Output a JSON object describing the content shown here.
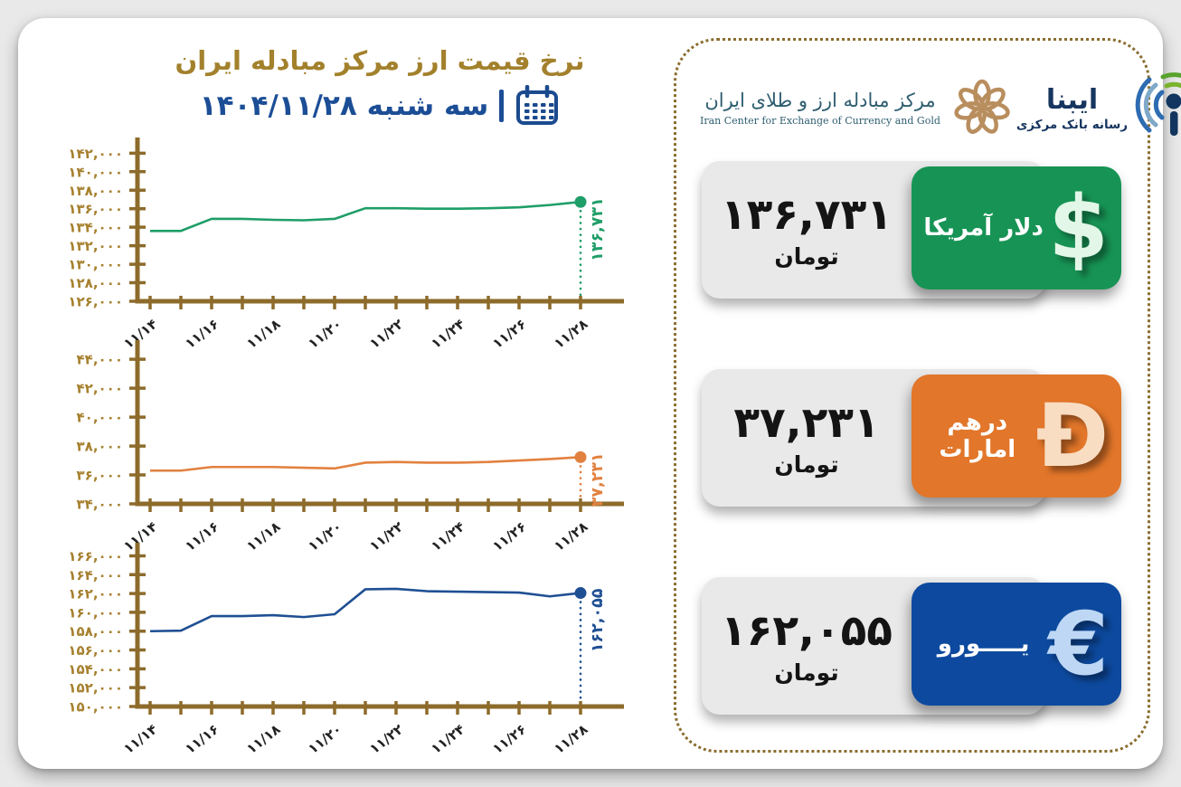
{
  "header": {
    "title": "نرخ قیمت ارز مرکز مبادله ایران",
    "date": "سه شنبه ۱۴۰۴/۱۱/۲۸"
  },
  "logos": {
    "icec": {
      "persian": "مرکز مبادله ارز و طلای ایران",
      "english": "Iran Center for Exchange of Currency and Gold"
    },
    "ibena": {
      "name": "ایبنا",
      "subtitle": "رسانه بانک مرکزی"
    }
  },
  "cards": [
    {
      "id": "usd",
      "value_display": "۱۳۶,۷۳۱",
      "unit": "تومان",
      "label": "دلار آمریکا",
      "symbol": "$",
      "symbol_name": "dollar-sign",
      "color": "#179455",
      "symbol_color": "#e2f7e8"
    },
    {
      "id": "aed",
      "value_display": "۳۷,۲۳۱",
      "unit": "تومان",
      "label": "درهم امارات",
      "symbol": "Đ",
      "symbol_name": "dirham-sign",
      "color": "#e2762a",
      "symbol_color": "#f8ddc2"
    },
    {
      "id": "eur",
      "value_display": "۱۶۲,۰۵۵",
      "unit": "تومان",
      "label": "یـــــورو",
      "symbol": "€",
      "symbol_name": "euro-sign",
      "color": "#0d4a9f",
      "symbol_color": "#bdd7f5"
    }
  ],
  "chart_style": {
    "axis_color": "#8d6b2b",
    "ytick_color": "#a6802e",
    "xtick_color": "#222222"
  },
  "chart_data": [
    {
      "type": "line",
      "name": "دلار آمریکا",
      "month_label": "۱۱",
      "days": [
        14,
        15,
        16,
        17,
        18,
        19,
        20,
        21,
        22,
        23,
        24,
        25,
        26,
        27,
        28
      ],
      "values": [
        133600,
        133600,
        134900,
        134900,
        134800,
        134750,
        134900,
        136050,
        136050,
        136000,
        136000,
        136050,
        136150,
        136400,
        136731
      ],
      "end_value": 136731,
      "line_color": "#1f9e68",
      "ylim": [
        126000,
        143500
      ],
      "yticks": [
        126000,
        142000,
        2000
      ],
      "xtick_label_every": 2,
      "grid": false
    },
    {
      "type": "line",
      "name": "درهم امارات",
      "month_label": "۱۱",
      "days": [
        14,
        15,
        16,
        17,
        18,
        19,
        20,
        21,
        22,
        23,
        24,
        25,
        26,
        27,
        28
      ],
      "values": [
        36300,
        36300,
        36550,
        36550,
        36550,
        36500,
        36450,
        36850,
        36900,
        36850,
        36850,
        36900,
        37000,
        37100,
        37231
      ],
      "end_value": 37231,
      "line_color": "#e2813f",
      "ylim": [
        34000,
        45200
      ],
      "yticks": [
        34000,
        44000,
        2000
      ],
      "xtick_label_every": 2,
      "grid": false
    },
    {
      "type": "line",
      "name": "یورو",
      "month_label": "۱۱",
      "days": [
        14,
        15,
        16,
        17,
        18,
        19,
        20,
        21,
        22,
        23,
        24,
        25,
        26,
        27,
        28
      ],
      "values": [
        158000,
        158050,
        159600,
        159600,
        159700,
        159500,
        159800,
        162450,
        162500,
        162250,
        162200,
        162150,
        162100,
        161700,
        162055
      ],
      "end_value": 162055,
      "line_color": "#1f4f93",
      "ylim": [
        150000,
        167200
      ],
      "yticks": [
        150000,
        166000,
        2000
      ],
      "xtick_label_every": 2,
      "grid": false
    }
  ]
}
